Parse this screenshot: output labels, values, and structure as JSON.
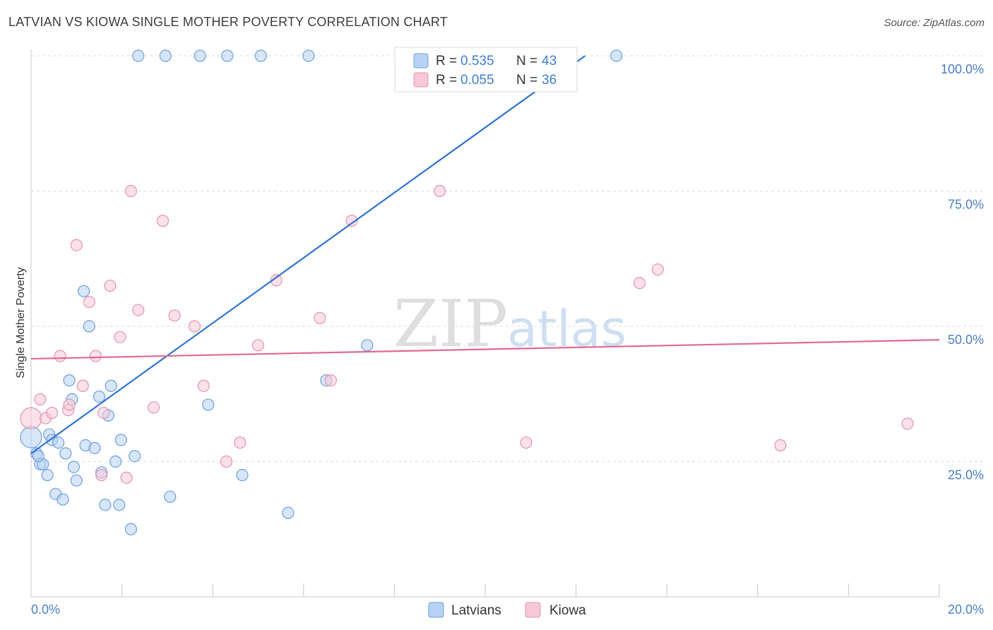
{
  "title": "LATVIAN VS KIOWA SINGLE MOTHER POVERTY CORRELATION CHART",
  "source": "Source: ZipAtlas.com",
  "watermark": {
    "zip": "ZIP",
    "atlas": "atlas"
  },
  "chart_data": {
    "type": "scatter",
    "xlabel": "",
    "ylabel": "Single Mother Poverty",
    "xlim": [
      0,
      20
    ],
    "ylim": [
      0,
      100
    ],
    "x_tick_labels": [
      "0.0%",
      "20.0%"
    ],
    "y_ticks": [
      25,
      50,
      75,
      100
    ],
    "y_tick_labels": [
      "25.0%",
      "50.0%",
      "75.0%",
      "100.0%"
    ],
    "grid": true,
    "legend": {
      "position": "top-center",
      "entries": [
        {
          "r_label": "R =",
          "r_value": "0.535",
          "n_label": "N =",
          "n_value": "43"
        },
        {
          "r_label": "R =",
          "r_value": "0.055",
          "n_label": "N =",
          "n_value": "36"
        }
      ]
    },
    "bottom_legend": [
      "Latvians",
      "Kiowa"
    ],
    "colors": {
      "latvians_fill": "#b7d2f4",
      "latvians_stroke": "#6d9fdc",
      "latvians_line": "#2f73d2",
      "kiowa_fill": "#f7c8d7",
      "kiowa_stroke": "#e494b0",
      "kiowa_line": "#e06a93"
    },
    "series": [
      {
        "name": "Latvians",
        "trend": {
          "x": [
            0.0,
            12.2
          ],
          "y": [
            26.5,
            100.0
          ]
        },
        "points": [
          [
            2.36,
            100
          ],
          [
            2.96,
            100
          ],
          [
            3.72,
            100
          ],
          [
            4.32,
            100
          ],
          [
            5.06,
            100
          ],
          [
            6.11,
            100
          ],
          [
            12.89,
            100
          ],
          [
            0.0,
            29.5
          ],
          [
            0.12,
            26.5
          ],
          [
            0.2,
            24.5
          ],
          [
            0.26,
            24.5
          ],
          [
            0.36,
            22.5
          ],
          [
            0.4,
            30.0
          ],
          [
            0.46,
            29.0
          ],
          [
            0.54,
            19.0
          ],
          [
            0.6,
            28.5
          ],
          [
            0.7,
            18.0
          ],
          [
            0.76,
            26.5
          ],
          [
            0.84,
            40.0
          ],
          [
            0.9,
            36.5
          ],
          [
            0.94,
            24.0
          ],
          [
            1.0,
            21.5
          ],
          [
            1.16,
            56.5
          ],
          [
            1.2,
            28.0
          ],
          [
            1.28,
            50.0
          ],
          [
            1.4,
            27.5
          ],
          [
            1.5,
            37.0
          ],
          [
            1.55,
            23.0
          ],
          [
            1.63,
            17.0
          ],
          [
            1.7,
            33.5
          ],
          [
            1.76,
            39.0
          ],
          [
            1.86,
            25.0
          ],
          [
            1.94,
            17.0
          ],
          [
            1.98,
            29.0
          ],
          [
            2.2,
            12.5
          ],
          [
            2.28,
            26.0
          ],
          [
            3.06,
            18.5
          ],
          [
            3.9,
            35.5
          ],
          [
            4.65,
            22.5
          ],
          [
            5.66,
            15.5
          ],
          [
            6.5,
            40.0
          ],
          [
            7.4,
            46.5
          ],
          [
            0.16,
            26.0
          ]
        ]
      },
      {
        "name": "Kiowa",
        "trend": {
          "x": [
            0.0,
            20.0
          ],
          "y": [
            44.0,
            47.5
          ]
        },
        "points": [
          [
            0.0,
            33.0
          ],
          [
            0.2,
            36.5
          ],
          [
            0.32,
            33.0
          ],
          [
            0.46,
            34.0
          ],
          [
            0.64,
            44.5
          ],
          [
            0.82,
            34.5
          ],
          [
            0.84,
            35.5
          ],
          [
            1.0,
            65.0
          ],
          [
            1.14,
            39.0
          ],
          [
            1.28,
            54.5
          ],
          [
            1.42,
            44.5
          ],
          [
            1.55,
            22.5
          ],
          [
            1.6,
            34.0
          ],
          [
            1.74,
            57.5
          ],
          [
            1.96,
            48.0
          ],
          [
            2.1,
            22.0
          ],
          [
            2.2,
            75.0
          ],
          [
            2.36,
            53.0
          ],
          [
            2.7,
            35.0
          ],
          [
            2.9,
            69.5
          ],
          [
            3.16,
            52.0
          ],
          [
            3.6,
            50.0
          ],
          [
            3.8,
            39.0
          ],
          [
            4.3,
            25.0
          ],
          [
            4.6,
            28.5
          ],
          [
            5.0,
            46.5
          ],
          [
            5.4,
            58.5
          ],
          [
            6.36,
            51.5
          ],
          [
            6.6,
            40.0
          ],
          [
            7.06,
            69.5
          ],
          [
            9.0,
            75.0
          ],
          [
            10.9,
            28.5
          ],
          [
            13.4,
            58.0
          ],
          [
            13.8,
            60.5
          ],
          [
            16.5,
            28.0
          ],
          [
            19.3,
            32.0
          ]
        ]
      }
    ]
  }
}
